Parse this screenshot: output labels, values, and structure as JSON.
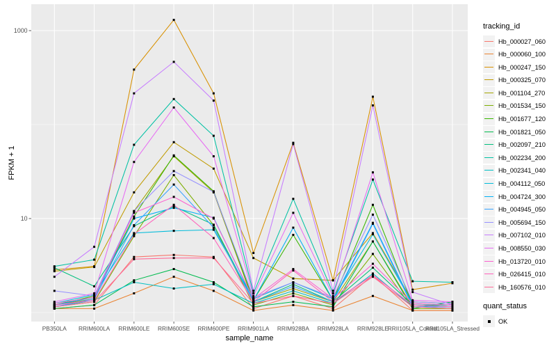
{
  "axes": {
    "y": {
      "title": "FPKM + 1",
      "scale": "log10",
      "tick_labels": [
        "1000",
        "10"
      ],
      "tick_values": [
        1000,
        10
      ]
    },
    "x": {
      "title": "sample_name"
    }
  },
  "legend": {
    "tracking_title": "tracking_id",
    "quant_title": "quant_status",
    "quant_items": [
      {
        "label": "OK",
        "marker": "black-filled-square"
      }
    ]
  },
  "colors": {
    "panel_background": "#EBEBEB",
    "gridline": "#FFFFFF",
    "tick_text": "#4D4D4D",
    "tick_mark": "#333333",
    "point": "#000000",
    "legend_key_fill": "#F2F2F2"
  },
  "chart_data": {
    "type": "line",
    "title": "",
    "xlabel": "sample_name",
    "ylabel": "FPKM + 1",
    "y_scale": "log10",
    "ylim": [
      1,
      1500
    ],
    "y_major_gridlines": [
      10,
      1000
    ],
    "y_minor_gridlines": [
      1,
      100
    ],
    "grid": true,
    "legend_position": "right",
    "marker": "filled-black-square (quant_status = OK)",
    "categories": [
      "PB350LA",
      "RRIM600LA",
      "RRIM600LE",
      "RRIM600SE",
      "RRIM600PE",
      "RRIM901LA",
      "RRIM928BA",
      "RRIM928LA",
      "RRIM928LE",
      "RRII105LA_Control",
      "RRII105LA_Stressed"
    ],
    "series": [
      {
        "name": "Hb_000027_060",
        "color": "#F8766D",
        "values": [
          1.1,
          1.2,
          3.9,
          4.1,
          3.9,
          1.1,
          1.5,
          1.1,
          2.5,
          1.05,
          1.05
        ]
      },
      {
        "name": "Hb_000060_100",
        "color": "#EA8331",
        "values": [
          1.1,
          1.1,
          1.6,
          2.4,
          1.7,
          1.05,
          1.2,
          1.05,
          1.5,
          1.05,
          1.05
        ]
      },
      {
        "name": "Hb_000247_150",
        "color": "#D89000",
        "values": [
          2.85,
          3.1,
          385,
          1300,
          215,
          4.3,
          64,
          2.2,
          198,
          1.75,
          2.05
        ]
      },
      {
        "name": "Hb_000325_070",
        "color": "#C09B00",
        "values": [
          2.75,
          3.05,
          19,
          65,
          34,
          3.8,
          2.3,
          2.2,
          7.0,
          1.3,
          1.25
        ]
      },
      {
        "name": "Hb_001104_270",
        "color": "#A3A500",
        "values": [
          1.2,
          1.4,
          12,
          46,
          19,
          1.3,
          1.8,
          1.3,
          5.7,
          1.15,
          1.1
        ]
      },
      {
        "name": "Hb_001534_150",
        "color": "#7CAE00",
        "values": [
          1.15,
          1.3,
          6.5,
          29,
          8.5,
          1.2,
          1.6,
          1.2,
          4.2,
          1.1,
          1.1
        ]
      },
      {
        "name": "Hb_001677_120",
        "color": "#39B600",
        "values": [
          1.2,
          1.5,
          10.5,
          47,
          19.5,
          1.35,
          6.7,
          1.35,
          14,
          1.2,
          1.15
        ]
      },
      {
        "name": "Hb_001821_050",
        "color": "#00BB4E",
        "values": [
          1.1,
          1.2,
          2.2,
          2.9,
          2.1,
          1.15,
          1.3,
          1.15,
          5.7,
          1.1,
          1.3
        ]
      },
      {
        "name": "Hb_002097_210",
        "color": "#00BF7D",
        "values": [
          3.0,
          1.9,
          8.3,
          13.5,
          8.6,
          1.3,
          2.0,
          1.3,
          3.0,
          1.2,
          1.2
        ]
      },
      {
        "name": "Hb_002234_200",
        "color": "#00C1A3",
        "values": [
          3.1,
          3.65,
          61,
          187,
          76,
          1.6,
          16.2,
          1.6,
          26,
          2.15,
          2.1
        ]
      },
      {
        "name": "Hb_002341_040",
        "color": "#00BFC4",
        "values": [
          1.15,
          1.35,
          2.1,
          1.8,
          2.0,
          1.25,
          1.7,
          1.25,
          2.6,
          1.15,
          1.15
        ]
      },
      {
        "name": "Hb_004112_050",
        "color": "#00BBDA",
        "values": [
          1.25,
          1.55,
          7.0,
          7.4,
          7.6,
          1.4,
          2.1,
          1.4,
          6.8,
          1.25,
          1.2
        ]
      },
      {
        "name": "Hb_004724_300",
        "color": "#00B0F6",
        "values": [
          1.2,
          1.45,
          10.0,
          13.0,
          10.2,
          1.35,
          8.0,
          1.35,
          9.0,
          1.2,
          1.15
        ]
      },
      {
        "name": "Hb_004945_050",
        "color": "#35A2FF",
        "values": [
          1.15,
          1.4,
          8.5,
          23,
          8.0,
          1.3,
          1.9,
          1.3,
          8.8,
          1.15,
          1.15
        ]
      },
      {
        "name": "Hb_005694_150",
        "color": "#9590FF",
        "values": [
          1.7,
          1.5,
          12.0,
          32,
          19.2,
          1.45,
          2.1,
          1.45,
          11,
          1.3,
          1.25
        ]
      },
      {
        "name": "Hb_007102_010",
        "color": "#C77CFF",
        "values": [
          2.4,
          5.0,
          215,
          465,
          180,
          1.7,
          62,
          1.7,
          160,
          1.65,
          1.2
        ]
      },
      {
        "name": "Hb_008550_030",
        "color": "#E76BF3",
        "values": [
          1.3,
          1.6,
          40,
          152,
          46,
          1.5,
          11.5,
          1.5,
          31,
          1.35,
          1.3
        ]
      },
      {
        "name": "Hb_013720_010",
        "color": "#FD61D1",
        "values": [
          1.25,
          1.45,
          11.5,
          17,
          10.0,
          1.4,
          2.9,
          1.4,
          3.3,
          1.25,
          1.2
        ]
      },
      {
        "name": "Hb_026415_010",
        "color": "#FF62BC",
        "values": [
          1.2,
          1.35,
          6.8,
          14,
          6.2,
          1.3,
          2.8,
          1.3,
          2.5,
          1.2,
          1.15
        ]
      },
      {
        "name": "Hb_160576_010",
        "color": "#FF6A98",
        "values": [
          1.15,
          1.3,
          3.7,
          3.8,
          3.8,
          1.25,
          1.5,
          1.25,
          2.4,
          1.15,
          1.1
        ]
      }
    ]
  }
}
